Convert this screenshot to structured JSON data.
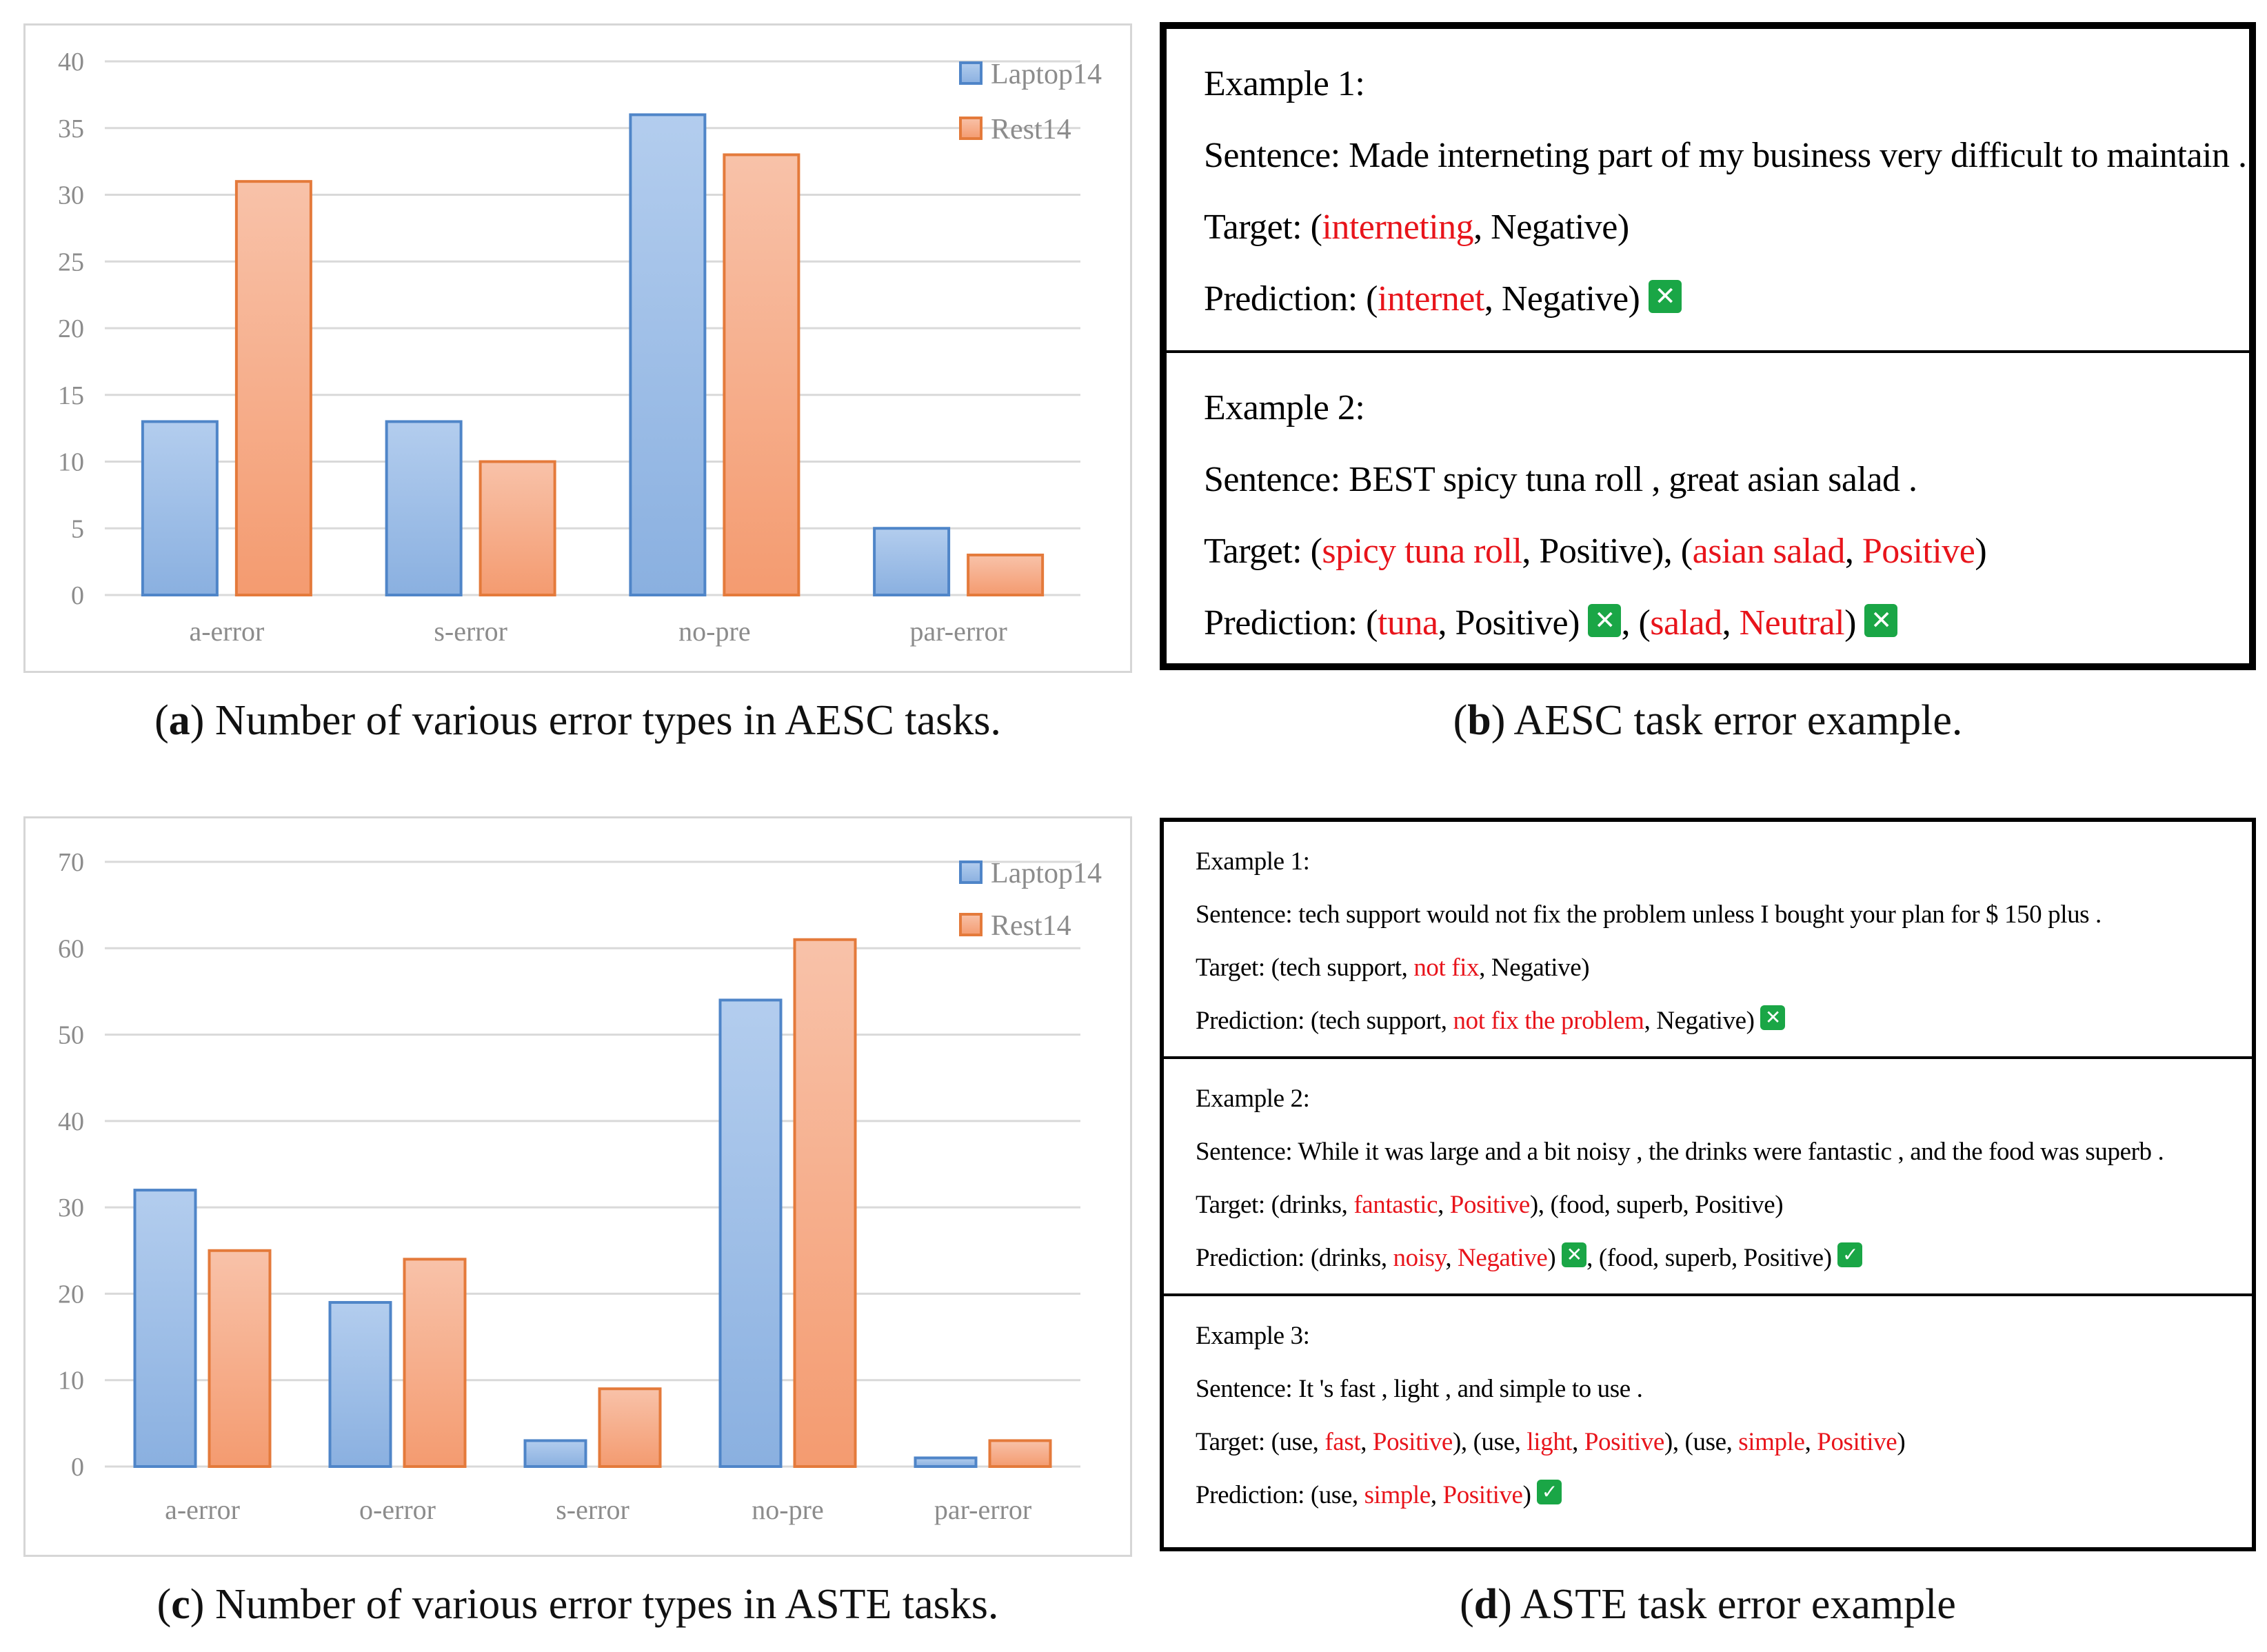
{
  "colors": {
    "laptop_fill_top": "#b3cdee",
    "laptop_fill_bottom": "#8ab0e0",
    "laptop_stroke": "#4f85c8",
    "rest_fill_top": "#f8c2a9",
    "rest_fill_bottom": "#f49b70",
    "rest_stroke": "#e47a3b",
    "grid": "#d9d9d9",
    "axis_text": "#8c8c8c",
    "highlight_red": "#e8141b",
    "mark_green": "#1aa646"
  },
  "chart_data": [
    {
      "id": "a",
      "type": "bar",
      "title": "",
      "categories": [
        "a-error",
        "s-error",
        "no-pre",
        "par-error"
      ],
      "series": [
        {
          "name": "Laptop14",
          "values": [
            13,
            13,
            36,
            5
          ]
        },
        {
          "name": "Rest14",
          "values": [
            31,
            10,
            33,
            3
          ]
        }
      ],
      "ylim": [
        0,
        40
      ],
      "yticks": [
        0,
        5,
        10,
        15,
        20,
        25,
        30,
        35,
        40
      ],
      "grid": true,
      "legend": "top-right",
      "xlabel": "",
      "ylabel": ""
    },
    {
      "id": "c",
      "type": "bar",
      "title": "",
      "categories": [
        "a-error",
        "o-error",
        "s-error",
        "no-pre",
        "par-error"
      ],
      "series": [
        {
          "name": "Laptop14",
          "values": [
            32,
            19,
            3,
            54,
            1
          ]
        },
        {
          "name": "Rest14",
          "values": [
            25,
            24,
            9,
            61,
            3
          ]
        }
      ],
      "ylim": [
        0,
        70
      ],
      "yticks": [
        0,
        10,
        20,
        30,
        40,
        50,
        60,
        70
      ],
      "grid": true,
      "legend": "top-right",
      "xlabel": "",
      "ylabel": ""
    }
  ],
  "captions": {
    "a": {
      "letter": "a",
      "text": " Number of various error types in AESC tasks."
    },
    "b": {
      "letter": "b",
      "text": " AESC task error example."
    },
    "c": {
      "letter": "c",
      "text": " Number of various error types in ASTE tasks."
    },
    "d": {
      "letter": "d",
      "text": " ASTE task error example"
    }
  },
  "aesc_examples": [
    {
      "title": "Example 1:",
      "lines": [
        [
          {
            "t": "Sentence: Made interneting part of my business very difficult to maintain ."
          }
        ],
        [
          {
            "t": "Target: ("
          },
          {
            "t": "interneting",
            "red": true
          },
          {
            "t": ", Negative)"
          }
        ],
        [
          {
            "t": "Prediction: ("
          },
          {
            "t": "internet",
            "red": true
          },
          {
            "t": ", Negative) "
          },
          {
            "mark": "wrong-mark-icon",
            "g": "✕"
          }
        ]
      ]
    },
    {
      "title": "Example 2:",
      "lines": [
        [
          {
            "t": "Sentence: BEST spicy tuna roll , great asian salad ."
          }
        ],
        [
          {
            "t": "Target: ("
          },
          {
            "t": "spicy tuna roll",
            "red": true
          },
          {
            "t": ", Positive), ("
          },
          {
            "t": "asian salad",
            "red": true
          },
          {
            "t": ", "
          },
          {
            "t": "Positive",
            "red": true
          },
          {
            "t": ")"
          }
        ],
        [
          {
            "t": "Prediction: ("
          },
          {
            "t": "tuna",
            "red": true
          },
          {
            "t": ", Positive) "
          },
          {
            "mark": "wrong-mark-icon",
            "g": "✕"
          },
          {
            "t": ", ("
          },
          {
            "t": "salad",
            "red": true
          },
          {
            "t": ", "
          },
          {
            "t": "Neutral",
            "red": true
          },
          {
            "t": ") "
          },
          {
            "mark": "wrong-mark-icon",
            "g": "✕"
          }
        ]
      ]
    }
  ],
  "aste_examples": [
    {
      "title": "Example 1:",
      "lines": [
        [
          {
            "t": "Sentence: tech support would not fix the problem unless I bought your plan for $ 150 plus ."
          }
        ],
        [
          {
            "t": "Target: (tech support, "
          },
          {
            "t": "not fix",
            "red": true
          },
          {
            "t": ", Negative)"
          }
        ],
        [
          {
            "t": "Prediction: (tech support, "
          },
          {
            "t": "not fix the problem",
            "red": true
          },
          {
            "t": ", Negative) "
          },
          {
            "mark": "wrong-mark-icon",
            "g": "✕"
          }
        ]
      ]
    },
    {
      "title": "Example 2:",
      "lines": [
        [
          {
            "t": "Sentence: While it was large and a bit noisy , the drinks were fantastic , and the food was superb ."
          }
        ],
        [
          {
            "t": "Target: (drinks, "
          },
          {
            "t": "fantastic",
            "red": true
          },
          {
            "t": ", "
          },
          {
            "t": "Positive",
            "red": true
          },
          {
            "t": "), (food, superb, Positive)"
          }
        ],
        [
          {
            "t": "Prediction: (drinks, "
          },
          {
            "t": "noisy",
            "red": true
          },
          {
            "t": ", "
          },
          {
            "t": "Negative",
            "red": true
          },
          {
            "t": ") "
          },
          {
            "mark": "wrong-mark-icon",
            "g": "✕"
          },
          {
            "t": ", (food, superb, Positive) "
          },
          {
            "mark": "check-mark-icon",
            "g": "✓"
          }
        ]
      ]
    },
    {
      "title": "Example 3:",
      "lines": [
        [
          {
            "t": "Sentence: It 's fast , light , and simple to use ."
          }
        ],
        [
          {
            "t": "Target: (use, "
          },
          {
            "t": "fast",
            "red": true
          },
          {
            "t": ", "
          },
          {
            "t": "Positive",
            "red": true
          },
          {
            "t": "), (use, "
          },
          {
            "t": "light",
            "red": true
          },
          {
            "t": ", "
          },
          {
            "t": "Positive",
            "red": true
          },
          {
            "t": "), (use, "
          },
          {
            "t": "simple",
            "red": true
          },
          {
            "t": ", "
          },
          {
            "t": "Positive",
            "red": true
          },
          {
            "t": ")"
          }
        ],
        [
          {
            "t": "Prediction: (use, "
          },
          {
            "t": "simple",
            "red": true
          },
          {
            "t": ", "
          },
          {
            "t": "Positive",
            "red": true
          },
          {
            "t": ") "
          },
          {
            "mark": "check-mark-icon",
            "g": "✓"
          }
        ]
      ]
    }
  ]
}
